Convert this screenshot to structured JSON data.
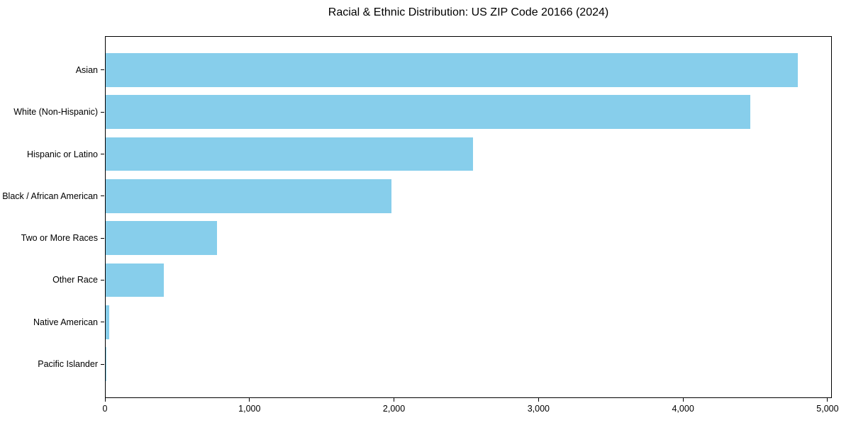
{
  "figure": {
    "background": "#ffffff"
  },
  "chart_data": {
    "type": "bar",
    "orientation": "horizontal",
    "title": "Racial & Ethnic Distribution: US ZIP Code 20166 (2024)",
    "categories": [
      "Asian",
      "White (Non-Hispanic)",
      "Hispanic or Latino",
      "Black / African American",
      "Two or More Races",
      "Other Race",
      "Native American",
      "Pacific Islander"
    ],
    "values": [
      4790,
      4460,
      2540,
      1980,
      770,
      400,
      24,
      3
    ],
    "xlabel": "",
    "ylabel": "",
    "xlim": [
      0,
      5000
    ],
    "x_tick_values": [
      0,
      1000,
      2000,
      3000,
      4000,
      5000
    ],
    "x_tick_labels": [
      "0",
      "1,000",
      "2,000",
      "3,000",
      "4,000",
      "5,000"
    ],
    "grid": false,
    "legend": "none",
    "bar_color": "#87CEEB",
    "axis_color": "#000000",
    "text_color": "#000000",
    "bar_height_fraction": 0.8
  }
}
